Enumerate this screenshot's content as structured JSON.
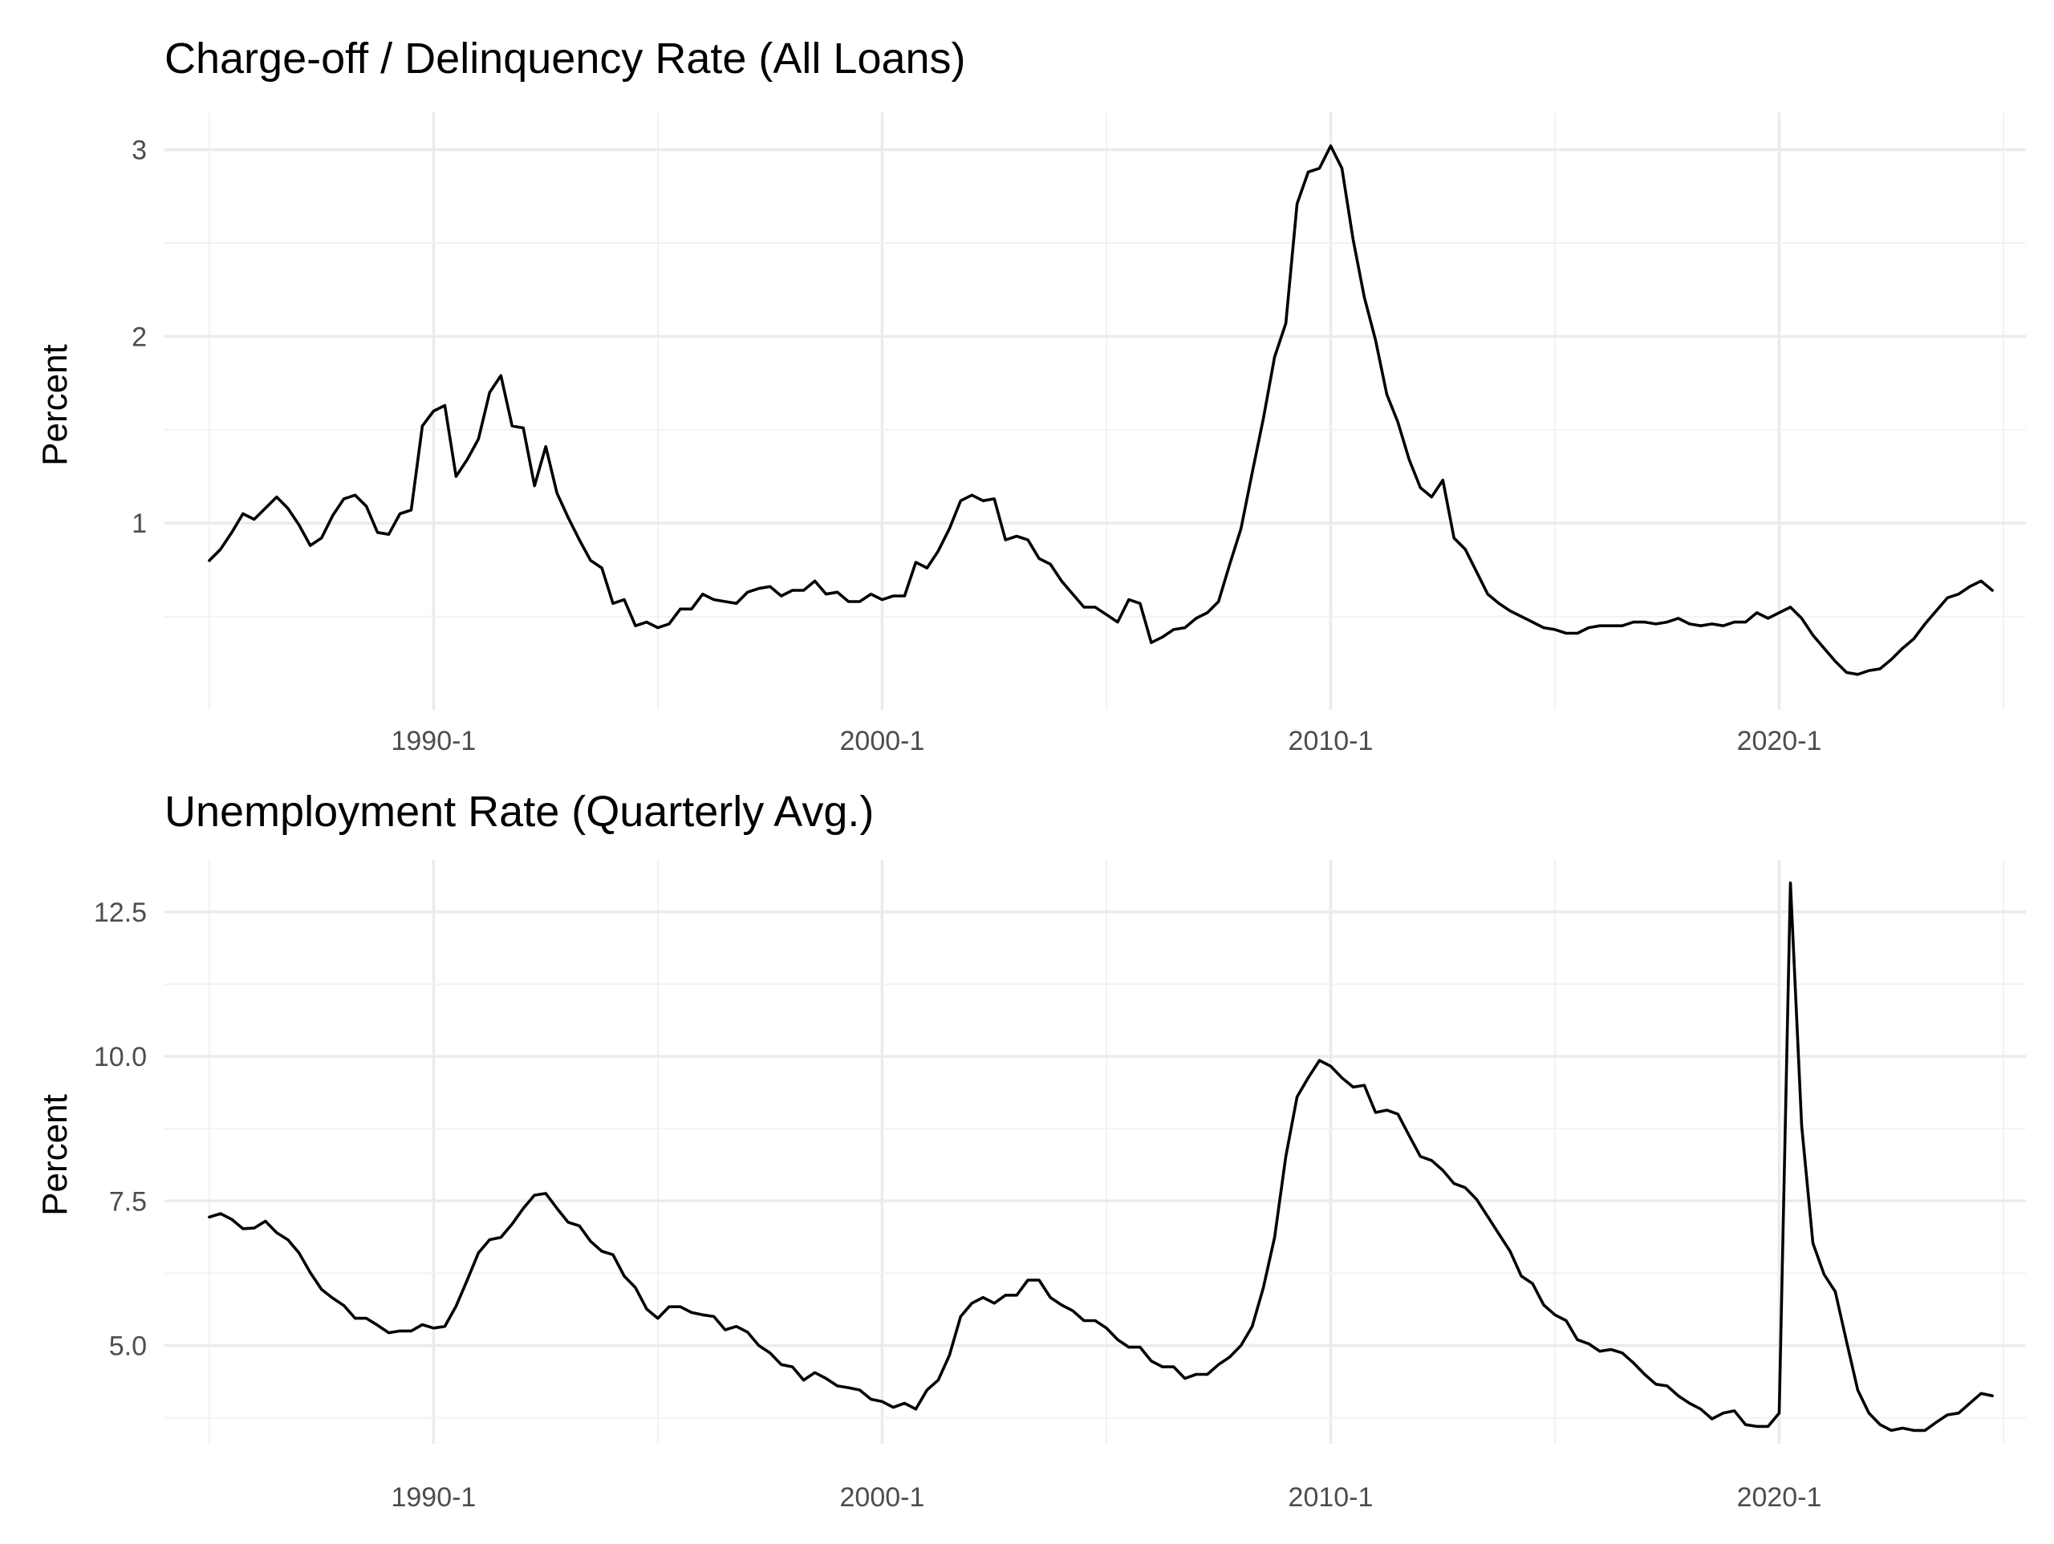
{
  "chart_data": [
    {
      "type": "line",
      "title": "Charge-off / Delinquency Rate (All Loans)",
      "xlabel": "",
      "ylabel": "Percent",
      "x_tick_labels": [
        "1990-1",
        "2000-1",
        "2010-1",
        "2020-1"
      ],
      "y_tick_labels": [
        "1",
        "2",
        "3"
      ],
      "y_ticks": [
        1,
        2,
        3
      ],
      "ylim": [
        0,
        3.2
      ],
      "xlim": [
        1984,
        2025.5
      ],
      "grid": true,
      "legend": "none",
      "start": 1985.0,
      "step": 0.25,
      "series": [
        {
          "values": [
            0.8,
            0.86,
            0.95,
            1.05,
            1.02,
            1.08,
            1.14,
            1.08,
            0.99,
            0.88,
            0.92,
            1.04,
            1.13,
            1.15,
            1.09,
            0.95,
            0.94,
            1.05,
            1.07,
            1.52,
            1.6,
            1.63,
            1.25,
            1.34,
            1.45,
            1.7,
            1.79,
            1.52,
            1.51,
            1.2,
            1.41,
            1.16,
            1.03,
            0.91,
            0.8,
            0.76,
            0.57,
            0.59,
            0.45,
            0.47,
            0.44,
            0.46,
            0.54,
            0.54,
            0.62,
            0.59,
            0.58,
            0.57,
            0.63,
            0.65,
            0.66,
            0.61,
            0.64,
            0.64,
            0.69,
            0.62,
            0.63,
            0.58,
            0.58,
            0.62,
            0.59,
            0.61,
            0.61,
            0.79,
            0.76,
            0.85,
            0.97,
            1.12,
            1.15,
            1.12,
            1.13,
            0.91,
            0.93,
            0.91,
            0.81,
            0.78,
            0.69,
            0.62,
            0.55,
            0.55,
            0.51,
            0.47,
            0.59,
            0.57,
            0.36,
            0.39,
            0.43,
            0.44,
            0.49,
            0.52,
            0.58,
            0.78,
            0.97,
            1.27,
            1.56,
            1.89,
            2.07,
            2.71,
            2.88,
            2.9,
            3.02,
            2.9,
            2.52,
            2.21,
            1.98,
            1.69,
            1.54,
            1.34,
            1.19,
            1.14,
            1.23,
            0.92,
            0.86,
            0.74,
            0.62,
            0.57,
            0.53,
            0.5,
            0.47,
            0.44,
            0.43,
            0.41,
            0.41,
            0.44,
            0.45,
            0.45,
            0.45,
            0.47,
            0.47,
            0.46,
            0.47,
            0.49,
            0.46,
            0.45,
            0.46,
            0.45,
            0.47,
            0.47,
            0.52,
            0.49,
            0.52,
            0.55,
            0.49,
            0.4,
            0.33,
            0.26,
            0.2,
            0.19,
            0.21,
            0.22,
            0.27,
            0.33,
            0.38,
            0.46,
            0.53,
            0.6,
            0.62,
            0.66,
            0.69,
            0.64
          ]
        }
      ]
    },
    {
      "type": "line",
      "title": "Unemployment Rate (Quarterly Avg.)",
      "xlabel": "",
      "ylabel": "Percent",
      "x_tick_labels": [
        "1990-1",
        "2000-1",
        "2010-1",
        "2020-1"
      ],
      "y_tick_labels": [
        "5.0",
        "7.5",
        "10.0",
        "12.5"
      ],
      "y_ticks": [
        5.0,
        7.5,
        10.0,
        12.5
      ],
      "ylim": [
        3.3,
        13.4
      ],
      "xlim": [
        1984,
        2025.5
      ],
      "grid": true,
      "legend": "none",
      "start": 1985.0,
      "step": 0.25,
      "series": [
        {
          "values": [
            7.22,
            7.28,
            7.18,
            7.02,
            7.03,
            7.15,
            6.95,
            6.83,
            6.6,
            6.26,
            5.97,
            5.82,
            5.69,
            5.47,
            5.47,
            5.35,
            5.22,
            5.25,
            5.25,
            5.36,
            5.3,
            5.33,
            5.68,
            6.13,
            6.6,
            6.83,
            6.87,
            7.1,
            7.37,
            7.6,
            7.63,
            7.37,
            7.13,
            7.07,
            6.8,
            6.63,
            6.57,
            6.2,
            6.0,
            5.63,
            5.47,
            5.67,
            5.67,
            5.57,
            5.53,
            5.5,
            5.27,
            5.33,
            5.23,
            5.0,
            4.87,
            4.67,
            4.63,
            4.4,
            4.53,
            4.43,
            4.3,
            4.27,
            4.23,
            4.07,
            4.03,
            3.93,
            4.0,
            3.9,
            4.23,
            4.4,
            4.83,
            5.5,
            5.73,
            5.83,
            5.73,
            5.87,
            5.87,
            6.13,
            6.13,
            5.83,
            5.7,
            5.6,
            5.43,
            5.43,
            5.3,
            5.1,
            4.97,
            4.97,
            4.73,
            4.63,
            4.63,
            4.43,
            4.5,
            4.5,
            4.67,
            4.8,
            5.0,
            5.33,
            6.0,
            6.87,
            8.27,
            9.3,
            9.63,
            9.93,
            9.83,
            9.63,
            9.47,
            9.5,
            9.03,
            9.07,
            9.0,
            8.63,
            8.27,
            8.2,
            8.03,
            7.8,
            7.73,
            7.53,
            7.23,
            6.93,
            6.63,
            6.2,
            6.07,
            5.7,
            5.53,
            5.43,
            5.1,
            5.03,
            4.9,
            4.93,
            4.87,
            4.7,
            4.5,
            4.33,
            4.3,
            4.13,
            4.0,
            3.9,
            3.73,
            3.83,
            3.87,
            3.63,
            3.6,
            3.6,
            3.83,
            13.0,
            8.8,
            6.77,
            6.23,
            5.93,
            5.07,
            4.23,
            3.83,
            3.63,
            3.53,
            3.57,
            3.53,
            3.53,
            3.67,
            3.8,
            3.83,
            4.0,
            4.17,
            4.13
          ]
        }
      ]
    }
  ]
}
